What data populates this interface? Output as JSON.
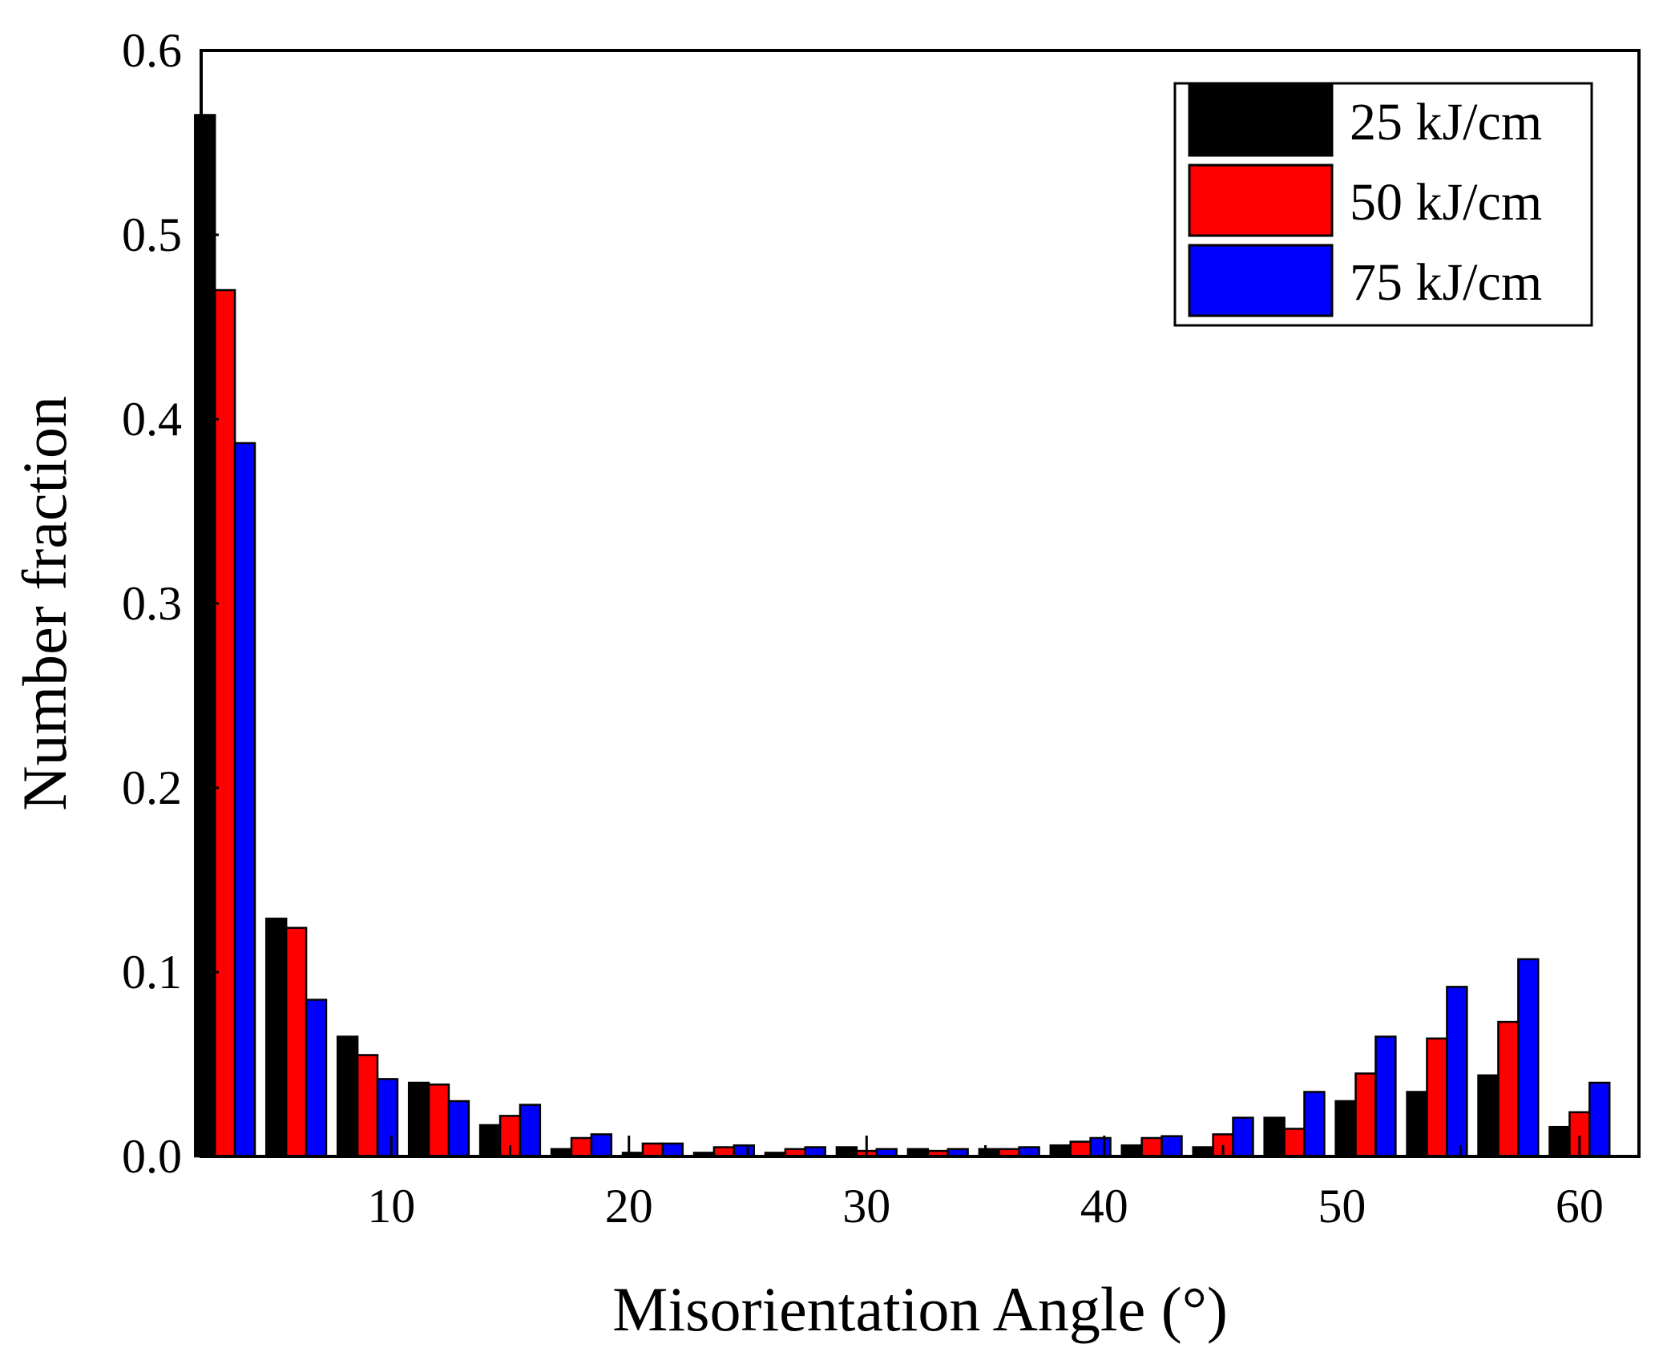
{
  "chart_data": {
    "type": "bar",
    "title": "",
    "xlabel": "Misorientation Angle (°)",
    "ylabel": "Number fraction",
    "xlim": [
      2,
      62.5
    ],
    "ylim": [
      0,
      0.6
    ],
    "xticks": [
      10,
      20,
      30,
      40,
      50,
      60
    ],
    "yticks": [
      0.0,
      0.1,
      0.2,
      0.3,
      0.4,
      0.5,
      0.6
    ],
    "ytick_labels": [
      "0.0",
      "0.1",
      "0.2",
      "0.3",
      "0.4",
      "0.5",
      "0.6"
    ],
    "bin_centers": [
      3,
      6,
      9,
      12,
      15,
      18,
      21,
      24,
      27,
      30,
      33,
      36,
      39,
      42,
      45,
      48,
      51,
      54,
      57,
      60
    ],
    "legend_position": "top-right",
    "series": [
      {
        "name": "25 kJ/cm",
        "color": "#000000",
        "values": [
          0.565,
          0.129,
          0.065,
          0.04,
          0.017,
          0.004,
          0.002,
          0.002,
          0.002,
          0.005,
          0.004,
          0.004,
          0.006,
          0.006,
          0.005,
          0.021,
          0.03,
          0.035,
          0.044,
          0.016
        ]
      },
      {
        "name": "50 kJ/cm",
        "color": "#ff0000",
        "values": [
          0.47,
          0.124,
          0.055,
          0.039,
          0.022,
          0.01,
          0.007,
          0.005,
          0.004,
          0.003,
          0.003,
          0.004,
          0.008,
          0.01,
          0.012,
          0.015,
          0.045,
          0.064,
          0.073,
          0.024
        ]
      },
      {
        "name": "75 kJ/cm",
        "color": "#0000ff",
        "values": [
          0.387,
          0.085,
          0.042,
          0.03,
          0.028,
          0.012,
          0.007,
          0.006,
          0.005,
          0.004,
          0.004,
          0.005,
          0.01,
          0.011,
          0.021,
          0.035,
          0.065,
          0.092,
          0.107,
          0.04
        ]
      }
    ]
  }
}
